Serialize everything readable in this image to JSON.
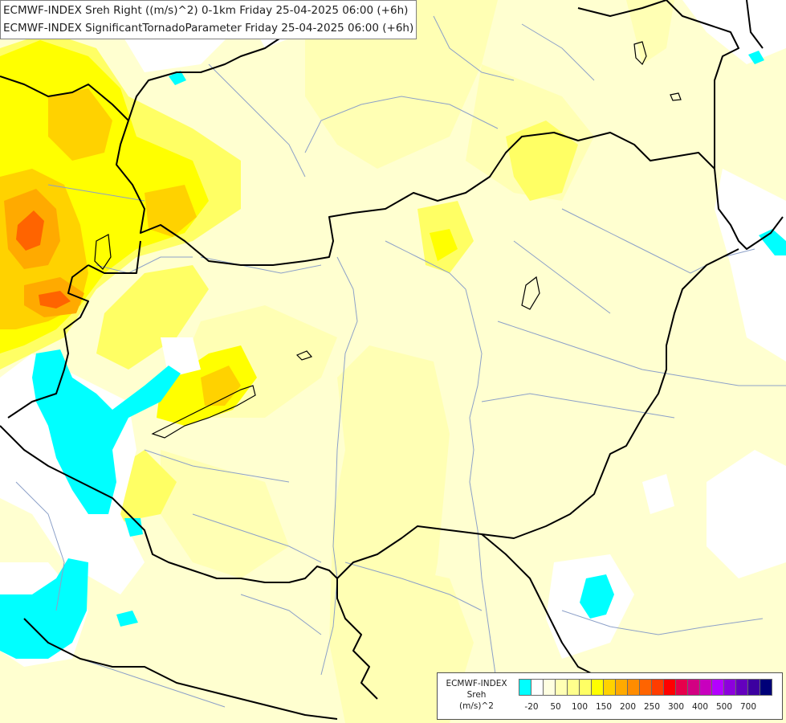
{
  "title_lines": [
    "ECMWF-INDEX Sreh Right ((m/s)^2) 0-1km Friday 25-04-2025 06:00 (+6h)",
    "ECMWF-INDEX SignificantTornadoParameter Friday 25-04-2025 06:00 (+6h)"
  ],
  "legend": {
    "title_lines": [
      "ECMWF-INDEX",
      "Sreh",
      "(m/s)^2"
    ],
    "colors": [
      "#00ffff",
      "#ffffff",
      "#ffffe0",
      "#ffffb4",
      "#ffff8c",
      "#ffff64",
      "#ffff00",
      "#ffd200",
      "#ffaa00",
      "#ff8c00",
      "#ff6400",
      "#ff3c00",
      "#ff0000",
      "#e6004b",
      "#d20082",
      "#c800be",
      "#b400ff",
      "#8c00dc",
      "#6400be",
      "#3c00a0",
      "#000078"
    ],
    "tick_labels": [
      "-20",
      "50",
      "100",
      "150",
      "200",
      "250",
      "300",
      "400",
      "500",
      "700"
    ]
  },
  "colors": {
    "background": "#ffffd0",
    "cyan": "#00ffff",
    "white": "#ffffff",
    "light_yellow": "#ffffb4",
    "yellow": "#ffff64",
    "bright_yellow": "#ffff00",
    "gold": "#ffd200",
    "orange": "#ffaa00",
    "dark_orange": "#ff6400",
    "border": "#000000",
    "river": "#8ca0c8"
  }
}
